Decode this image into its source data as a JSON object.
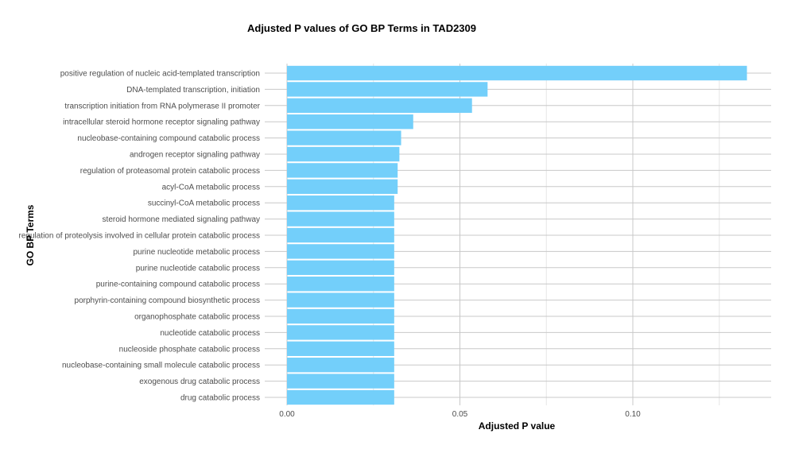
{
  "chart_data": {
    "type": "bar",
    "orientation": "horizontal",
    "title": "Adjusted P values of GO BP Terms in TAD2309",
    "xlabel": "Adjusted P value",
    "ylabel": "GO BP Terms",
    "xlim": [
      0,
      0.14
    ],
    "xticks": [
      0,
      0.05,
      0.1
    ],
    "xtick_labels": [
      "0.00",
      "0.05",
      "0.10"
    ],
    "bar_color": "#73CFFA",
    "grid": true,
    "legend": "none",
    "categories": [
      "positive regulation of nucleic acid-templated transcription",
      "DNA-templated transcription, initiation",
      "transcription initiation from RNA polymerase II promoter",
      "intracellular steroid hormone receptor signaling pathway",
      "nucleobase-containing compound catabolic process",
      "androgen receptor signaling pathway",
      "regulation of proteasomal protein catabolic process",
      "acyl-CoA metabolic process",
      "succinyl-CoA metabolic process",
      "steroid hormone mediated signaling pathway",
      "regulation of proteolysis involved in cellular protein catabolic process",
      "purine nucleotide metabolic process",
      "purine nucleotide catabolic process",
      "purine-containing compound catabolic process",
      "porphyrin-containing compound biosynthetic process",
      "organophosphate catabolic process",
      "nucleotide catabolic process",
      "nucleoside phosphate catabolic process",
      "nucleobase-containing small molecule catabolic process",
      "exogenous drug catabolic process",
      "drug catabolic process"
    ],
    "values": [
      0.133,
      0.058,
      0.0535,
      0.0365,
      0.033,
      0.0325,
      0.032,
      0.032,
      0.031,
      0.031,
      0.031,
      0.031,
      0.031,
      0.031,
      0.031,
      0.031,
      0.031,
      0.031,
      0.031,
      0.031,
      0.031
    ]
  }
}
